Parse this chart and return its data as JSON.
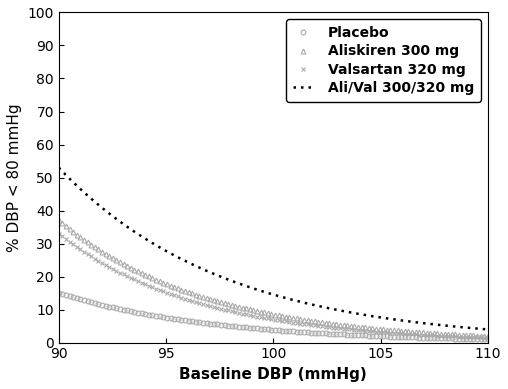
{
  "xlabel": "Baseline DBP (mmHg)",
  "ylabel": "% DBP < 80 mmHg",
  "xlim": [
    90,
    110
  ],
  "ylim": [
    0,
    100
  ],
  "xticks": [
    90,
    95,
    100,
    105,
    110
  ],
  "yticks": [
    0,
    10,
    20,
    30,
    40,
    50,
    60,
    70,
    80,
    90,
    100
  ],
  "curves": [
    {
      "label": "Placebo",
      "marker": "o",
      "color": "#aaaaaa",
      "y90": 15.0,
      "y110": 1.0,
      "is_dotted": false
    },
    {
      "label": "Aliskiren 300 mg",
      "marker": "^",
      "color": "#aaaaaa",
      "y90": 37.0,
      "y110": 2.0,
      "is_dotted": false
    },
    {
      "label": "Valsartan 320 mg",
      "marker": "x",
      "color": "#aaaaaa",
      "y90": 33.0,
      "y110": 1.5,
      "is_dotted": false
    },
    {
      "label": "Ali/Val 300/320 mg",
      "marker": ".",
      "color": "#000000",
      "y90": 53.0,
      "y110": 4.0,
      "is_dotted": true
    }
  ],
  "background_color": "#ffffff",
  "legend_fontsize": 10,
  "axis_label_fontsize": 11,
  "tick_fontsize": 10,
  "n_markers": 120
}
